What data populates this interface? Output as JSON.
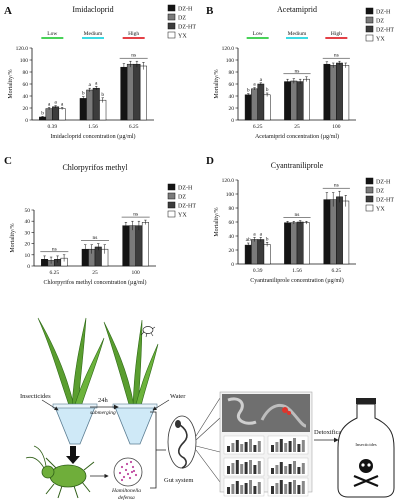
{
  "colors": {
    "series": [
      "#141414",
      "#7a7a7a",
      "#3c3c3c",
      "#ffffff"
    ],
    "low": "#2ecc40",
    "medium": "#1fd6e0",
    "high": "#e0242b",
    "leaf": "#5a9e2f",
    "aphid": "#6fae3a",
    "gut": "#333333",
    "ld50_band": "#cfcfcf"
  },
  "chart_data": [
    {
      "panel": "A",
      "type": "bar",
      "title": "Imidacloprid",
      "ylabel": "Mortality/%",
      "xlabel": "Imidacloprid concentration (µg/ml)",
      "ylim": [
        0,
        120
      ],
      "yticks": [
        0,
        20,
        40,
        60,
        80,
        100,
        120
      ],
      "ytick_labels": [
        "0",
        "20",
        "40",
        "60",
        "80",
        "100",
        "120.0"
      ],
      "categories": [
        "0.39",
        "1.56",
        "6.25"
      ],
      "series": [
        {
          "name": "DZ-H",
          "values": [
            5,
            36,
            88
          ],
          "err": [
            1,
            3,
            6
          ]
        },
        {
          "name": "DZ",
          "values": [
            19,
            50,
            93
          ],
          "err": [
            2,
            3,
            5
          ]
        },
        {
          "name": "DZ-HT",
          "values": [
            22,
            53,
            93
          ],
          "err": [
            2,
            3,
            5
          ]
        },
        {
          "name": "YX",
          "values": [
            19,
            33,
            90
          ],
          "err": [
            2,
            4,
            6
          ]
        }
      ],
      "sig": [
        [
          "b",
          "a",
          "a",
          "a"
        ],
        [
          "b",
          "a",
          "a",
          "b"
        ],
        []
      ],
      "ns": [
        "",
        "",
        "ns"
      ],
      "levels": [
        "Low",
        "Medium",
        "High"
      ],
      "legend": "right"
    },
    {
      "panel": "B",
      "type": "bar",
      "title": "Acetamiprid",
      "ylabel": "Mortality/%",
      "xlabel": "Acetamiprid concentration (µg/ml)",
      "ylim": [
        0,
        120
      ],
      "yticks": [
        0,
        20,
        40,
        60,
        80,
        100,
        120
      ],
      "ytick_labels": [
        "0",
        "20",
        "40",
        "60",
        "80",
        "100",
        "120.0"
      ],
      "categories": [
        "6.25",
        "25",
        "100"
      ],
      "series": [
        {
          "name": "DZ-H",
          "values": [
            42,
            64,
            93
          ],
          "err": [
            2,
            4,
            4
          ]
        },
        {
          "name": "DZ",
          "values": [
            52,
            65,
            91
          ],
          "err": [
            2,
            4,
            4
          ]
        },
        {
          "name": "DZ-HT",
          "values": [
            60,
            64,
            95
          ],
          "err": [
            2,
            4,
            3
          ]
        },
        {
          "name": "YX",
          "values": [
            42,
            68,
            91
          ],
          "err": [
            3,
            4,
            4
          ]
        }
      ],
      "sig": [
        [
          "b",
          "a",
          "a",
          "b"
        ],
        [],
        []
      ],
      "ns": [
        "",
        "ns",
        "ns"
      ],
      "levels": [
        "Low",
        "Medium",
        "High"
      ],
      "legend": "right"
    },
    {
      "panel": "C",
      "type": "bar",
      "title": "Chlorpyrifos methyl",
      "ylabel": "Mortality/%",
      "xlabel": "Chlorpyrifos methyl concentration (µg/ml)",
      "ylim": [
        0,
        50
      ],
      "yticks": [
        0,
        10,
        20,
        30,
        40,
        50
      ],
      "ytick_labels": [
        "0",
        "10",
        "20",
        "30",
        "40",
        "50"
      ],
      "categories": [
        "6.25",
        "25",
        "100"
      ],
      "series": [
        {
          "name": "DZ-H",
          "values": [
            6,
            15,
            36
          ],
          "err": [
            3,
            4,
            3
          ]
        },
        {
          "name": "DZ",
          "values": [
            5,
            15,
            36
          ],
          "err": [
            3,
            4,
            4
          ]
        },
        {
          "name": "DZ-HT",
          "values": [
            6,
            17,
            36
          ],
          "err": [
            3,
            3,
            4
          ]
        },
        {
          "name": "YX",
          "values": [
            7,
            15,
            39
          ],
          "err": [
            3,
            4,
            2
          ]
        }
      ],
      "sig": [
        [],
        [],
        []
      ],
      "ns": [
        "ns",
        "ns",
        "ns"
      ],
      "levels": [],
      "legend": "right"
    },
    {
      "panel": "D",
      "type": "bar",
      "title": "Cyantraniliprole",
      "ylabel": "Mortality/%",
      "xlabel": "Cyantraniliprole concentration (µg/ml)",
      "ylim": [
        0,
        120
      ],
      "yticks": [
        0,
        20,
        40,
        60,
        80,
        100,
        120
      ],
      "ytick_labels": [
        "0",
        "20",
        "40",
        "60",
        "80",
        "100",
        "120.0"
      ],
      "categories": [
        "0.39",
        "1.56",
        "6.25"
      ],
      "series": [
        {
          "name": "DZ-H",
          "values": [
            27,
            59,
            92
          ],
          "err": [
            3,
            2,
            10
          ]
        },
        {
          "name": "DZ",
          "values": [
            35,
            59,
            92
          ],
          "err": [
            3,
            2,
            10
          ]
        },
        {
          "name": "DZ-HT",
          "values": [
            35,
            60,
            96
          ],
          "err": [
            3,
            2,
            8
          ]
        },
        {
          "name": "YX",
          "values": [
            28,
            59,
            90
          ],
          "err": [
            3,
            2,
            8
          ]
        }
      ],
      "sig": [
        [
          "ab",
          "a",
          "a",
          "b"
        ],
        [],
        []
      ],
      "ns": [
        "",
        "ns",
        "ns"
      ],
      "levels": [],
      "legend": "right"
    }
  ],
  "schematic": {
    "insecticides": "Insecticides",
    "time": "24h",
    "submerging": "submerging",
    "water": "Water",
    "hamiltonella_line1": "Hamiltonella",
    "hamiltonella_line2": "defensa",
    "gut_system": "Gut system",
    "detoxification": "Detoxification",
    "bottle_label": "Insecticides"
  }
}
